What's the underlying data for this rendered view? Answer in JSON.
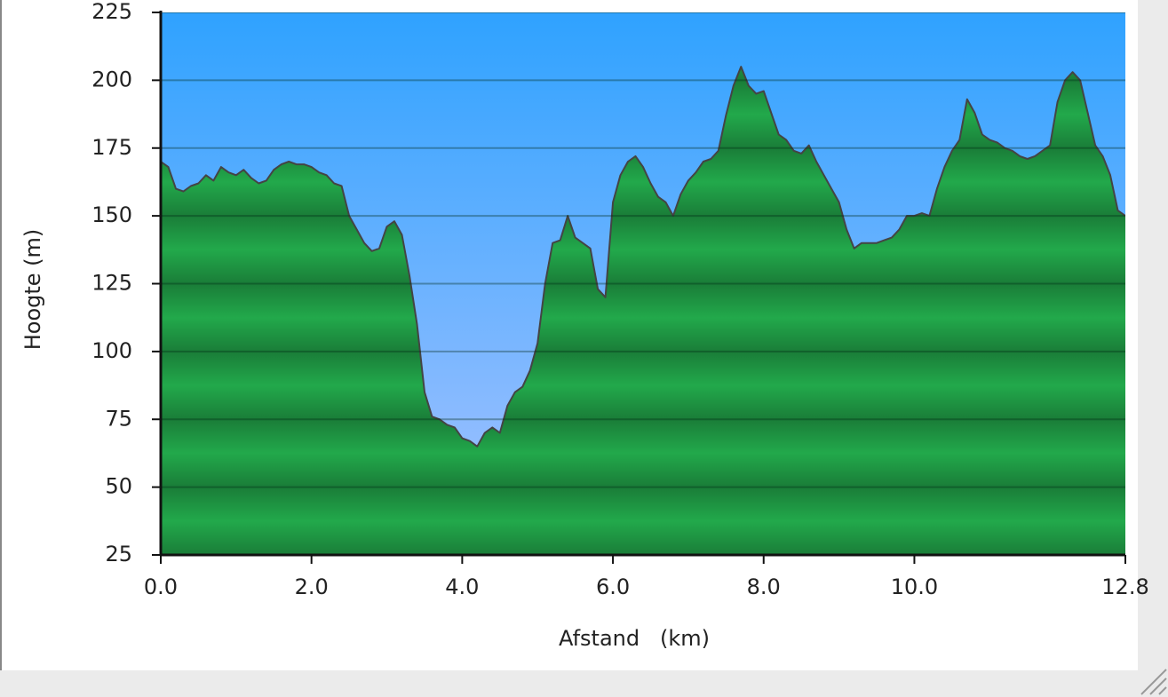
{
  "chart_data": {
    "type": "area",
    "x_label": "Afstand   (km)",
    "y_label": "Hoogte (m)",
    "x": [
      0,
      0.1,
      0.2,
      0.3,
      0.4,
      0.5,
      0.6,
      0.7,
      0.8,
      0.9,
      1,
      1.1,
      1.2,
      1.3,
      1.4,
      1.5,
      1.6,
      1.7,
      1.8,
      1.9,
      2,
      2.1,
      2.2,
      2.3,
      2.4,
      2.5,
      2.6,
      2.7,
      2.8,
      2.9,
      3,
      3.1,
      3.2,
      3.3,
      3.4,
      3.5,
      3.6,
      3.7,
      3.8,
      3.9,
      4,
      4.1,
      4.2,
      4.3,
      4.4,
      4.5,
      4.6,
      4.7,
      4.8,
      4.9,
      5,
      5.1,
      5.2,
      5.3,
      5.4,
      5.5,
      5.6,
      5.7,
      5.8,
      5.9,
      6,
      6.1,
      6.2,
      6.3,
      6.4,
      6.5,
      6.6,
      6.7,
      6.8,
      6.9,
      7,
      7.1,
      7.2,
      7.3,
      7.4,
      7.5,
      7.6,
      7.7,
      7.8,
      7.9,
      8,
      8.1,
      8.2,
      8.3,
      8.4,
      8.5,
      8.6,
      8.7,
      8.8,
      8.9,
      9,
      9.1,
      9.2,
      9.3,
      9.4,
      9.5,
      9.6,
      9.7,
      9.8,
      9.9,
      10,
      10.1,
      10.2,
      10.3,
      10.4,
      10.5,
      10.6,
      10.7,
      10.8,
      10.9,
      11,
      11.1,
      11.2,
      11.3,
      11.4,
      11.5,
      11.6,
      11.7,
      11.8,
      11.9,
      12,
      12.1,
      12.2,
      12.3,
      12.4,
      12.5,
      12.6,
      12.7,
      12.8
    ],
    "values": [
      170,
      168,
      160,
      159,
      161,
      162,
      165,
      163,
      168,
      166,
      165,
      167,
      164,
      162,
      163,
      167,
      169,
      170,
      169,
      169,
      168,
      166,
      165,
      162,
      161,
      150,
      145,
      140,
      137,
      138,
      146,
      148,
      143,
      128,
      110,
      85,
      76,
      75,
      73,
      72,
      68,
      67,
      65,
      70,
      72,
      70,
      80,
      85,
      87,
      93,
      103,
      125,
      140,
      141,
      150,
      142,
      140,
      138,
      123,
      120,
      155,
      165,
      170,
      172,
      168,
      162,
      157,
      155,
      150,
      158,
      163,
      166,
      170,
      171,
      174,
      187,
      198,
      205,
      198,
      195,
      196,
      188,
      180,
      178,
      174,
      173,
      176,
      170,
      165,
      160,
      155,
      145,
      138,
      140,
      140,
      140,
      141,
      142,
      145,
      150,
      150,
      151,
      150,
      160,
      168,
      174,
      178,
      193,
      188,
      180,
      178,
      177,
      175,
      174,
      172,
      171,
      172,
      174,
      176,
      192,
      200,
      203,
      200,
      188,
      176,
      172,
      165,
      152,
      150
    ],
    "line_color": "#444444",
    "xlim": [
      0,
      12.8
    ],
    "ylim": [
      25,
      225
    ],
    "xticks": [
      {
        "value": 0,
        "label": "0.0"
      },
      {
        "value": 2,
        "label": "2.0"
      },
      {
        "value": 4,
        "label": "4.0"
      },
      {
        "value": 6,
        "label": "6.0"
      },
      {
        "value": 8,
        "label": "8.0"
      },
      {
        "value": 10,
        "label": "10.0"
      },
      12.8
    ],
    "yticks": [
      25,
      50,
      75,
      100,
      125,
      150,
      175,
      200,
      225
    ],
    "grid": true
  }
}
